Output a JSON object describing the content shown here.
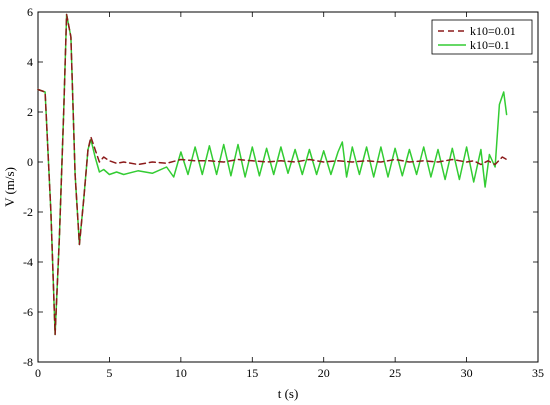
{
  "chart_data": {
    "type": "line",
    "title": "",
    "xlabel": "t (s)",
    "ylabel": "V (m/s)",
    "xlim": [
      0,
      35
    ],
    "ylim": [
      -8,
      6
    ],
    "xticks": [
      0,
      5,
      10,
      15,
      20,
      25,
      30,
      35
    ],
    "yticks": [
      -8,
      -6,
      -4,
      -2,
      0,
      2,
      4,
      6
    ],
    "grid": false,
    "legend_position": "top-right",
    "series": [
      {
        "name": "k10=0.01",
        "color": "#8b1a1a",
        "line_style": "dashed",
        "x": [
          0,
          0.5,
          0.9,
          1.2,
          1.5,
          1.8,
          2.0,
          2.3,
          2.6,
          2.9,
          3.2,
          3.5,
          3.7,
          4.0,
          4.3,
          4.6,
          5.0,
          5.5,
          6,
          7,
          8,
          9,
          10,
          11,
          12,
          13,
          14,
          15,
          16,
          17,
          18,
          19,
          20,
          21,
          22,
          23,
          24,
          25,
          26,
          27,
          28,
          29,
          30,
          30.5,
          31,
          31.5,
          32,
          32.5,
          32.8
        ],
        "y": [
          2.9,
          2.8,
          -2.0,
          -6.9,
          -3.0,
          2.0,
          5.9,
          5.0,
          -0.5,
          -3.3,
          -1.5,
          0.5,
          1.0,
          0.5,
          0.0,
          0.2,
          0.05,
          -0.05,
          0,
          -0.1,
          0,
          -0.05,
          0.1,
          0.05,
          0.05,
          0.0,
          0.1,
          0.05,
          0.0,
          0.05,
          0.0,
          0.1,
          0.0,
          0.05,
          0.0,
          0.05,
          0.0,
          0.1,
          0.0,
          0.05,
          0.0,
          0.1,
          0.0,
          0.05,
          -0.1,
          0.05,
          -0.1,
          0.2,
          0.1
        ]
      },
      {
        "name": "k10=0.1",
        "color": "#33cc33",
        "line_style": "solid",
        "x": [
          0,
          0.5,
          0.9,
          1.2,
          1.5,
          1.8,
          2.0,
          2.3,
          2.6,
          2.9,
          3.2,
          3.5,
          3.7,
          4.0,
          4.3,
          4.6,
          5.0,
          5.5,
          6,
          7,
          8,
          9,
          9.5,
          10,
          10.5,
          11,
          11.5,
          12,
          12.5,
          13,
          13.5,
          14,
          14.5,
          15,
          15.5,
          16,
          16.5,
          17,
          17.5,
          18,
          18.5,
          19,
          19.5,
          20,
          20.5,
          21,
          21.3,
          21.6,
          22,
          22.5,
          23,
          23.5,
          24,
          24.5,
          25,
          25.5,
          26,
          26.5,
          27,
          27.5,
          28,
          28.5,
          29,
          29.5,
          30,
          30.5,
          31,
          31.3,
          31.6,
          32,
          32.3,
          32.6,
          32.8
        ],
        "y": [
          2.9,
          2.8,
          -2.0,
          -6.9,
          -3.0,
          2.0,
          5.9,
          5.0,
          -0.5,
          -3.3,
          -1.5,
          0.5,
          0.9,
          0.2,
          -0.4,
          -0.3,
          -0.5,
          -0.4,
          -0.5,
          -0.35,
          -0.45,
          -0.2,
          -0.6,
          0.4,
          -0.5,
          0.6,
          -0.5,
          0.65,
          -0.5,
          0.7,
          -0.55,
          0.7,
          -0.6,
          0.6,
          -0.55,
          0.55,
          -0.5,
          0.6,
          -0.45,
          0.5,
          -0.5,
          0.5,
          -0.5,
          0.45,
          -0.5,
          0.4,
          0.8,
          -0.6,
          0.6,
          -0.5,
          0.6,
          -0.6,
          0.6,
          -0.6,
          0.55,
          -0.55,
          0.5,
          -0.5,
          0.6,
          -0.6,
          0.5,
          -0.7,
          0.55,
          -0.7,
          0.6,
          -0.8,
          0.5,
          -1.0,
          0.3,
          -0.2,
          2.3,
          2.8,
          1.9
        ]
      }
    ]
  }
}
